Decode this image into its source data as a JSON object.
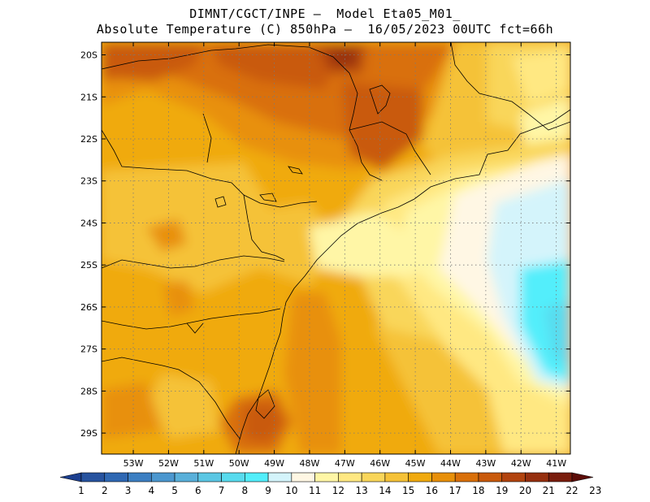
{
  "title": {
    "line1": "DIMNT/CGCT/INPE –  Model Eta05_M01_",
    "line2": "Absolute Temperature (C) 850hPa –  16/05/2023 00UTC fct=66h"
  },
  "map": {
    "lon_range": [
      -53.9,
      -40.6
    ],
    "lat_range": [
      -29.5,
      -19.7
    ],
    "lat_ticks": [
      {
        "value": -20,
        "label": "20S"
      },
      {
        "value": -21,
        "label": "21S"
      },
      {
        "value": -22,
        "label": "22S"
      },
      {
        "value": -23,
        "label": "23S"
      },
      {
        "value": -24,
        "label": "24S"
      },
      {
        "value": -25,
        "label": "25S"
      },
      {
        "value": -26,
        "label": "26S"
      },
      {
        "value": -27,
        "label": "27S"
      },
      {
        "value": -28,
        "label": "28S"
      },
      {
        "value": -29,
        "label": "29S"
      }
    ],
    "lon_ticks": [
      {
        "value": -53,
        "label": "53W"
      },
      {
        "value": -52,
        "label": "52W"
      },
      {
        "value": -51,
        "label": "51W"
      },
      {
        "value": -50,
        "label": "50W"
      },
      {
        "value": -49,
        "label": "49W"
      },
      {
        "value": -48,
        "label": "48W"
      },
      {
        "value": -47,
        "label": "47W"
      },
      {
        "value": -46,
        "label": "46W"
      },
      {
        "value": -45,
        "label": "45W"
      },
      {
        "value": -44,
        "label": "44W"
      },
      {
        "value": -43,
        "label": "43W"
      },
      {
        "value": -42,
        "label": "42W"
      },
      {
        "value": -41,
        "label": "41W"
      }
    ],
    "grid": "dotted"
  },
  "colorbar": {
    "labels": [
      "1",
      "2",
      "3",
      "4",
      "5",
      "6",
      "7",
      "8",
      "9",
      "10",
      "11",
      "12",
      "13",
      "14",
      "15",
      "16",
      "17",
      "18",
      "19",
      "20",
      "21",
      "22",
      "23"
    ],
    "colors": [
      "#1c3f8f",
      "#27539f",
      "#2f68b3",
      "#3c7fc2",
      "#4b97cf",
      "#59b0da",
      "#5bc7e4",
      "#58dbee",
      "#52eefb",
      "#d4f4fb",
      "#fff7e4",
      "#fff6a6",
      "#ffe882",
      "#f9d65a",
      "#f5c238",
      "#f0aa0f",
      "#e8900a",
      "#d9700a",
      "#c95a0c",
      "#b2440f",
      "#96300f",
      "#7a1d0d",
      "#5c0c08"
    ]
  }
}
